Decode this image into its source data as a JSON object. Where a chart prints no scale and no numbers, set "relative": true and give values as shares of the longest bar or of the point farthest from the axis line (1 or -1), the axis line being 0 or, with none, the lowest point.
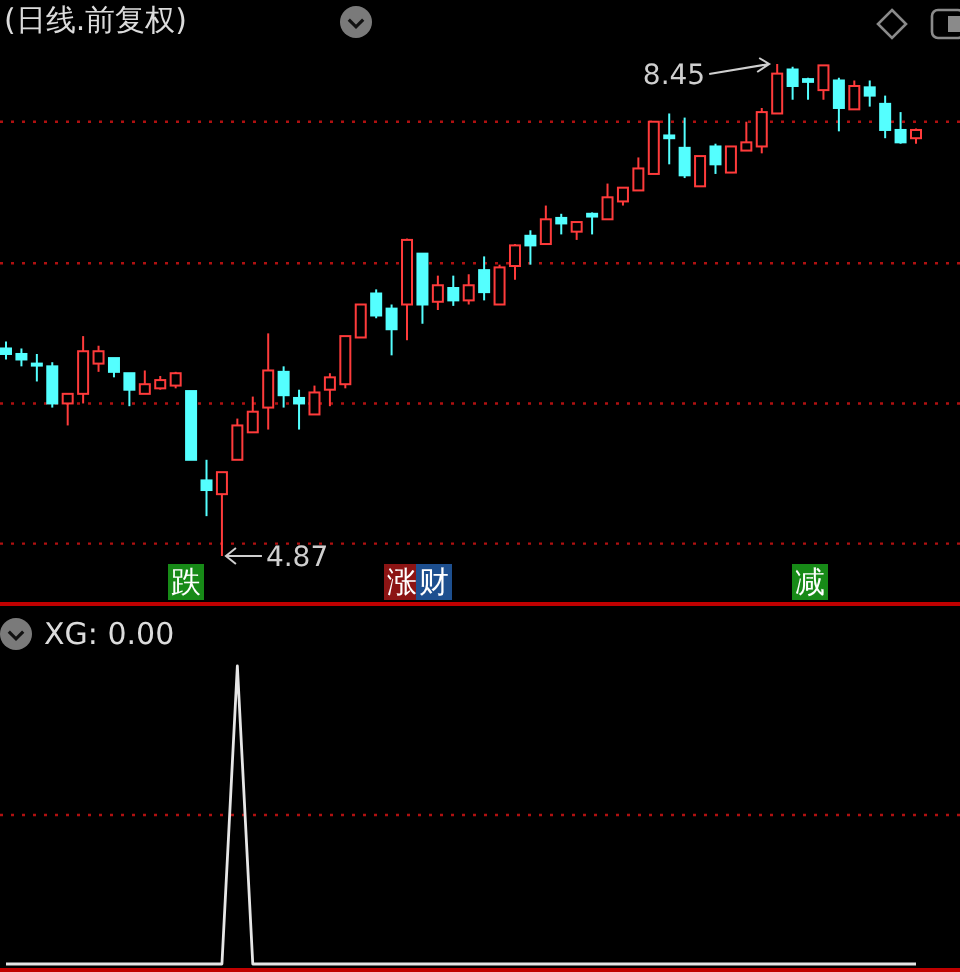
{
  "chart_data": [
    {
      "type": "candlestick",
      "title": "(日线.前复权)",
      "categories": [
        null,
        null,
        null,
        null,
        null,
        null,
        null,
        null,
        null,
        null,
        null,
        null,
        null,
        null,
        null,
        null,
        null,
        null,
        null,
        null,
        null,
        null,
        null,
        null,
        null,
        null,
        null,
        null,
        null,
        null,
        null,
        null,
        null,
        null,
        null,
        null,
        null,
        null,
        null,
        null,
        null,
        null,
        null,
        null,
        null,
        null,
        null,
        null,
        null,
        null,
        null,
        null,
        null,
        null,
        null,
        null,
        null,
        null,
        null,
        null
      ],
      "ohlc": [
        [
          6.38,
          6.43,
          6.3,
          6.34
        ],
        [
          6.34,
          6.38,
          6.25,
          6.3
        ],
        [
          6.27,
          6.34,
          6.14,
          6.26
        ],
        [
          6.25,
          6.28,
          5.95,
          5.98
        ],
        [
          5.98,
          6.05,
          5.82,
          6.05
        ],
        [
          6.05,
          6.47,
          5.98,
          6.36
        ],
        [
          6.27,
          6.4,
          6.21,
          6.36
        ],
        [
          6.31,
          6.31,
          6.17,
          6.21
        ],
        [
          6.2,
          6.2,
          5.96,
          6.08
        ],
        [
          6.05,
          6.22,
          6.05,
          6.12
        ],
        [
          6.09,
          6.18,
          6.08,
          6.15
        ],
        [
          6.11,
          6.21,
          6.09,
          6.2
        ],
        [
          6.07,
          6.07,
          5.57,
          5.57
        ],
        [
          5.42,
          5.57,
          5.16,
          5.35
        ],
        [
          5.32,
          5.48,
          4.87,
          5.48
        ],
        [
          5.57,
          5.87,
          5.57,
          5.82
        ],
        [
          5.77,
          6.03,
          5.77,
          5.92
        ],
        [
          5.95,
          6.49,
          5.79,
          6.22
        ],
        [
          6.21,
          6.25,
          5.95,
          6.04
        ],
        [
          6.02,
          6.08,
          5.79,
          5.98
        ],
        [
          5.9,
          6.11,
          5.9,
          6.06
        ],
        [
          6.08,
          6.2,
          5.96,
          6.17
        ],
        [
          6.12,
          6.47,
          6.09,
          6.47
        ],
        [
          6.46,
          6.7,
          6.46,
          6.7
        ],
        [
          6.78,
          6.81,
          6.6,
          6.62
        ],
        [
          6.67,
          6.7,
          6.33,
          6.52
        ],
        [
          6.7,
          7.18,
          6.44,
          7.17
        ],
        [
          7.07,
          7.07,
          6.56,
          6.7
        ],
        [
          6.72,
          6.91,
          6.66,
          6.84
        ],
        [
          6.82,
          6.91,
          6.69,
          6.73
        ],
        [
          6.73,
          6.92,
          6.7,
          6.84
        ],
        [
          6.95,
          7.05,
          6.73,
          6.79
        ],
        [
          6.7,
          6.99,
          6.7,
          6.97
        ],
        [
          6.98,
          7.14,
          6.88,
          7.13
        ],
        [
          7.2,
          7.24,
          6.99,
          7.13
        ],
        [
          7.14,
          7.42,
          7.14,
          7.32
        ],
        [
          7.33,
          7.36,
          7.21,
          7.29
        ],
        [
          7.23,
          7.3,
          7.17,
          7.3
        ],
        [
          7.36,
          7.37,
          7.21,
          7.34
        ],
        [
          7.32,
          7.58,
          7.32,
          7.48
        ],
        [
          7.45,
          7.55,
          7.42,
          7.55
        ],
        [
          7.53,
          7.77,
          7.53,
          7.69
        ],
        [
          7.65,
          8.03,
          7.65,
          8.03
        ],
        [
          7.93,
          8.09,
          7.72,
          7.91
        ],
        [
          7.84,
          8.06,
          7.62,
          7.64
        ],
        [
          7.56,
          7.78,
          7.56,
          7.78
        ],
        [
          7.85,
          7.87,
          7.65,
          7.72
        ],
        [
          7.66,
          7.85,
          7.66,
          7.85
        ],
        [
          7.82,
          8.03,
          7.82,
          7.88
        ],
        [
          7.85,
          8.13,
          7.8,
          8.1
        ],
        [
          8.09,
          8.45,
          8.09,
          8.38
        ],
        [
          8.41,
          8.43,
          8.19,
          8.29
        ],
        [
          8.34,
          8.35,
          8.19,
          8.32
        ],
        [
          8.26,
          8.44,
          8.19,
          8.44
        ],
        [
          8.33,
          8.35,
          7.96,
          8.13
        ],
        [
          8.12,
          8.33,
          8.12,
          8.29
        ],
        [
          8.28,
          8.33,
          8.14,
          8.22
        ],
        [
          8.16,
          8.22,
          7.91,
          7.97
        ],
        [
          7.97,
          8.1,
          7.87,
          7.88
        ],
        [
          7.91,
          7.98,
          7.87,
          7.97
        ]
      ],
      "yticks": [
        {
          "value": 4.96,
          "label": null
        },
        {
          "value": 5.98,
          "label": null
        },
        {
          "value": 7.0,
          "label": null
        },
        {
          "value": 8.03,
          "label": null
        }
      ],
      "grid": "y",
      "annotations": [
        "8.45",
        "4.87",
        "跌",
        "涨",
        "财",
        "减"
      ]
    },
    {
      "type": "line",
      "title": "XG: 0.00",
      "relative": true,
      "categories": [
        null,
        null,
        null,
        null,
        null,
        null,
        null,
        null,
        null,
        null,
        null,
        null,
        null,
        null,
        null,
        null,
        null,
        null,
        null,
        null,
        null,
        null,
        null,
        null,
        null,
        null,
        null,
        null,
        null,
        null,
        null,
        null,
        null,
        null,
        null,
        null,
        null,
        null,
        null,
        null,
        null,
        null,
        null,
        null,
        null,
        null,
        null,
        null,
        null,
        null,
        null,
        null,
        null,
        null,
        null,
        null,
        null,
        null,
        null,
        null
      ],
      "series": [
        {
          "color": "#e6e6e6",
          "values": [
            0,
            0,
            0,
            0,
            0,
            0,
            0,
            0,
            0,
            0,
            0,
            0,
            0,
            0,
            0,
            1,
            0,
            0,
            0,
            0,
            0,
            0,
            0,
            0,
            0,
            0,
            0,
            0,
            0,
            0,
            0,
            0,
            0,
            0,
            0,
            0,
            0,
            0,
            0,
            0,
            0,
            0,
            0,
            0,
            0,
            0,
            0,
            0,
            0,
            0,
            0,
            0,
            0,
            0,
            0,
            0,
            0,
            0,
            0,
            0
          ]
        }
      ],
      "ref_lines": [
        {
          "axis": "y",
          "value": 0.5,
          "color": "#b01010",
          "line_style": "dotted"
        }
      ]
    }
  ]
}
